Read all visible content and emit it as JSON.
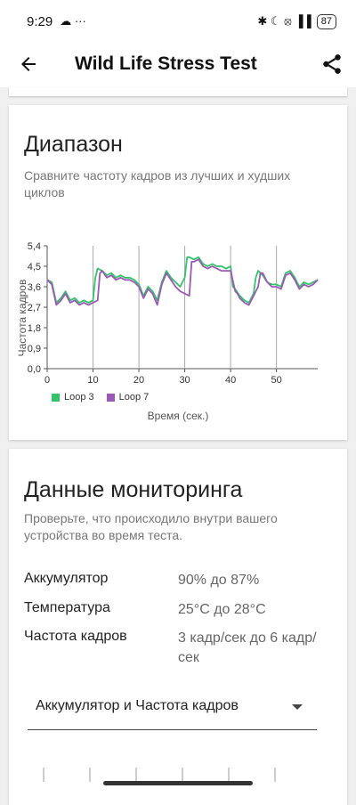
{
  "status": {
    "time": "9:29",
    "extras": "☁ ···",
    "right_icons": "✱ ☾ ⦻ ▐▐",
    "battery": "87"
  },
  "app_bar": {
    "title": "Wild Life Stress Test",
    "back_icon": "arrow-left-icon",
    "share_icon": "share-icon"
  },
  "range_card": {
    "title": "Диапазон",
    "subtitle": "Сравните частоту кадров из лучших и худших циклов"
  },
  "chart_data": {
    "type": "line",
    "xlabel": "Время (сек.)",
    "ylabel": "Частота кадров",
    "xlim": [
      0,
      59
    ],
    "ylim": [
      0,
      5.4
    ],
    "x_ticks": [
      0,
      10,
      20,
      30,
      40,
      50
    ],
    "y_ticks": [
      "0,0",
      "0,9",
      "1,8",
      "2,7",
      "3,6",
      "4,5",
      "5,4"
    ],
    "y_tick_values": [
      0,
      0.9,
      1.8,
      2.7,
      3.6,
      4.5,
      5.4
    ],
    "series": [
      {
        "name": "Loop 3",
        "color": "#33c36a",
        "x": [
          0,
          1,
          2,
          3,
          4,
          5,
          6,
          7,
          8,
          9,
          10,
          10.5,
          11,
          12,
          13,
          14,
          15,
          16,
          17,
          18,
          19,
          20,
          21,
          22,
          23,
          24,
          25,
          26,
          27,
          28,
          29,
          30,
          30.5,
          31,
          32,
          33,
          34,
          35,
          36,
          37,
          38,
          39,
          40,
          40.5,
          41,
          42,
          43,
          44,
          45,
          45.5,
          46,
          47,
          48,
          49,
          50,
          51,
          52,
          53,
          54,
          55,
          56,
          57,
          58,
          59
        ],
        "y": [
          3.9,
          3.8,
          2.9,
          3.1,
          3.4,
          3.0,
          3.1,
          2.9,
          3.0,
          2.9,
          3.0,
          4.0,
          4.4,
          4.3,
          4.1,
          4.2,
          4.0,
          4.1,
          4.0,
          4.0,
          3.9,
          3.7,
          3.2,
          3.6,
          3.4,
          3.0,
          3.8,
          4.3,
          4.0,
          3.8,
          3.6,
          4.0,
          4.9,
          4.9,
          4.8,
          4.9,
          4.6,
          4.5,
          4.6,
          4.5,
          4.5,
          4.4,
          4.5,
          3.6,
          3.5,
          3.2,
          3.0,
          2.9,
          3.3,
          4.0,
          4.3,
          4.1,
          3.8,
          3.7,
          3.7,
          3.6,
          4.2,
          4.3,
          4.0,
          3.6,
          3.8,
          3.7,
          3.8,
          3.9
        ]
      },
      {
        "name": "Loop 7",
        "color": "#9b59b6",
        "x": [
          0,
          1,
          2,
          3,
          4,
          5,
          6,
          7,
          8,
          9,
          10,
          11,
          11.5,
          12,
          13,
          14,
          15,
          16,
          17,
          18,
          19,
          20,
          21,
          22,
          23,
          24,
          25,
          26,
          27,
          28,
          29,
          30,
          31,
          31.5,
          32,
          33,
          34,
          35,
          36,
          37,
          38,
          39,
          40,
          41,
          41.5,
          42,
          43,
          44,
          45,
          46,
          46.5,
          47,
          48,
          49,
          50,
          51,
          52,
          53,
          54,
          55,
          56,
          57,
          58,
          59
        ],
        "y": [
          3.9,
          3.7,
          2.8,
          3.0,
          3.3,
          2.9,
          3.0,
          2.8,
          2.9,
          2.8,
          2.9,
          3.0,
          4.2,
          4.3,
          4.0,
          4.1,
          3.9,
          4.0,
          3.9,
          3.9,
          3.8,
          3.6,
          3.1,
          3.5,
          3.3,
          2.8,
          3.7,
          4.2,
          3.9,
          3.6,
          3.4,
          3.3,
          3.2,
          4.7,
          4.7,
          4.8,
          4.5,
          4.4,
          4.5,
          4.4,
          4.3,
          4.3,
          4.3,
          3.4,
          3.3,
          3.1,
          2.9,
          2.8,
          3.2,
          3.6,
          4.2,
          4.2,
          3.8,
          3.6,
          3.6,
          3.5,
          4.1,
          4.2,
          3.9,
          3.5,
          3.7,
          3.6,
          3.7,
          3.9
        ]
      }
    ],
    "grid": "vertical"
  },
  "monitor_card": {
    "title": "Данные мониторинга",
    "subtitle": "Проверьте, что происходило внутри вашего устройства во время теста.",
    "rows": [
      {
        "label": "Аккумулятор",
        "value": "90% до 87%"
      },
      {
        "label": "Температура",
        "value": "25°C до 28°C"
      },
      {
        "label": "Частота кадров",
        "value": "3 кадр/сек до 6 кадр/сек"
      }
    ],
    "dropdown": {
      "selected": "Аккумулятор и Частота кадров"
    }
  }
}
